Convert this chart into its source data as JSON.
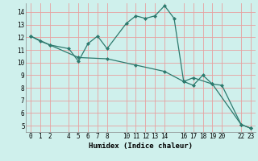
{
  "xlabel": "Humidex (Indice chaleur)",
  "xlim": [
    -0.5,
    23.5
  ],
  "ylim": [
    4.5,
    14.7
  ],
  "xticks": [
    0,
    1,
    2,
    4,
    5,
    6,
    7,
    8,
    10,
    11,
    12,
    13,
    14,
    16,
    17,
    18,
    19,
    20,
    22,
    23
  ],
  "yticks": [
    5,
    6,
    7,
    8,
    9,
    10,
    11,
    12,
    13,
    14
  ],
  "bg_color": "#cff0ec",
  "grid_color_major": "#e8a0a0",
  "line_color": "#2d7a6e",
  "line1_x": [
    0,
    1,
    2,
    4,
    5,
    6,
    7,
    8,
    10,
    11,
    12,
    13,
    14,
    15,
    16,
    17,
    18,
    19,
    20,
    22,
    23
  ],
  "line1_y": [
    12.1,
    11.7,
    11.4,
    11.1,
    10.1,
    11.5,
    12.1,
    11.1,
    13.1,
    13.7,
    13.5,
    13.7,
    14.5,
    13.5,
    8.5,
    8.2,
    9.0,
    8.3,
    8.2,
    5.1,
    4.8
  ],
  "line2_x": [
    0,
    2,
    5,
    8,
    11,
    14,
    16,
    17,
    19,
    22,
    23
  ],
  "line2_y": [
    12.1,
    11.4,
    10.4,
    10.3,
    9.8,
    9.3,
    8.5,
    8.8,
    8.3,
    5.1,
    4.8
  ],
  "tick_fontsize": 5.5,
  "xlabel_fontsize": 6.5
}
